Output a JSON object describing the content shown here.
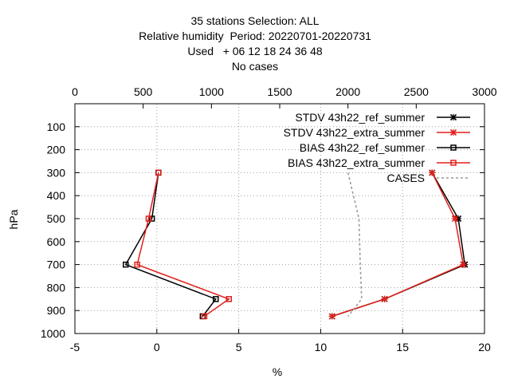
{
  "title_lines": [
    "35 stations Selection: ALL",
    "Relative humidity  Period: 20220701-20220731",
    "Used   + 06 12 18 24 36 48",
    "No cases"
  ],
  "chart_data": {
    "type": "line",
    "xlabel": "%",
    "ylabel": "hPa",
    "xlim": [
      -5,
      20
    ],
    "x2lim": [
      0,
      3000
    ],
    "ylim": [
      1000,
      0
    ],
    "y_reversed": true,
    "grid": true,
    "legend_position": "top-right",
    "xticks": [
      "-5",
      "0",
      "5",
      "10",
      "15",
      "20"
    ],
    "x2ticks": [
      "0",
      "500",
      "1000",
      "1500",
      "2000",
      "2500",
      "3000"
    ],
    "yticks": [
      "100",
      "200",
      "300",
      "400",
      "500",
      "600",
      "700",
      "800",
      "900",
      "1000"
    ],
    "colors": {
      "black": "#000000",
      "red": "#e0201a",
      "gray": "#999999",
      "grid": "#a0a0a0"
    },
    "series": [
      {
        "name": "STDV 43h22_ref_summer",
        "color": "#000000",
        "marker": "x",
        "axis": "x",
        "points": [
          [
            16.8,
            300
          ],
          [
            18.4,
            500
          ],
          [
            18.8,
            700
          ],
          [
            13.9,
            850
          ],
          [
            10.7,
            925
          ]
        ]
      },
      {
        "name": "STDV 43h22_extra_summer",
        "color": "#e0201a",
        "marker": "x",
        "axis": "x",
        "points": [
          [
            16.8,
            300
          ],
          [
            18.2,
            500
          ],
          [
            18.7,
            700
          ],
          [
            13.9,
            850
          ],
          [
            10.7,
            925
          ]
        ]
      },
      {
        "name": "BIAS 43h22_ref_summer",
        "color": "#000000",
        "marker": "square",
        "axis": "x",
        "points": [
          [
            0.1,
            300
          ],
          [
            -0.3,
            500
          ],
          [
            -1.9,
            700
          ],
          [
            3.6,
            850
          ],
          [
            2.8,
            925
          ]
        ]
      },
      {
        "name": "BIAS 43h22_extra_summer",
        "color": "#e0201a",
        "marker": "square",
        "axis": "x",
        "points": [
          [
            0.1,
            300
          ],
          [
            -0.5,
            500
          ],
          [
            -1.2,
            700
          ],
          [
            4.4,
            850
          ],
          [
            2.9,
            925
          ]
        ]
      },
      {
        "name": "CASES",
        "color": "#999999",
        "marker": "none",
        "dashed": true,
        "axis": "x2",
        "points": [
          [
            2000,
            300
          ],
          [
            2080,
            500
          ],
          [
            2090,
            700
          ],
          [
            2100,
            850
          ],
          [
            2000,
            925
          ]
        ]
      }
    ]
  }
}
